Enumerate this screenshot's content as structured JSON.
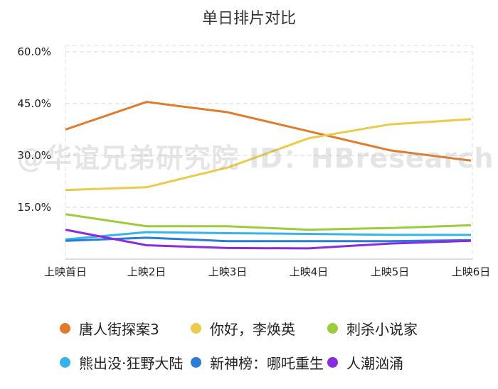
{
  "chart_data": {
    "type": "line",
    "title": "单日排片对比",
    "categories": [
      "上映首日",
      "上映2日",
      "上映3日",
      "上映4日",
      "上映5日",
      "上映6日"
    ],
    "yticks": [
      "60.0%",
      "45.0%",
      "30.0%",
      "15.0%"
    ],
    "ytick_values": [
      60,
      45,
      30,
      15
    ],
    "ylim": [
      0,
      60
    ],
    "grid": true,
    "legend_position": "bottom",
    "series": [
      {
        "name": "唐人街探案3",
        "color": "#E07B2C",
        "values": [
          37.5,
          45.5,
          42.5,
          37.0,
          31.5,
          28.5
        ]
      },
      {
        "name": "你好，李焕英",
        "color": "#EBCB4A",
        "values": [
          20.0,
          20.8,
          26.5,
          35.0,
          39.0,
          40.5
        ]
      },
      {
        "name": "刺杀小说家",
        "color": "#9CCC3C",
        "values": [
          13.0,
          9.5,
          9.5,
          8.5,
          9.0,
          9.8
        ]
      },
      {
        "name": "熊出没·狂野大陆",
        "color": "#36B4EA",
        "values": [
          5.7,
          7.8,
          7.5,
          7.3,
          7.0,
          7.0
        ]
      },
      {
        "name": "新神榜：哪吒重生",
        "color": "#2A7CD6",
        "values": [
          5.3,
          6.2,
          5.2,
          5.2,
          5.2,
          5.5
        ]
      },
      {
        "name": "人潮汹涌",
        "color": "#8A2BE2",
        "values": [
          8.5,
          4.0,
          3.2,
          3.1,
          4.5,
          5.3
        ]
      }
    ]
  },
  "watermark": "@华谊兄弟研究院 ID：HBresearch"
}
